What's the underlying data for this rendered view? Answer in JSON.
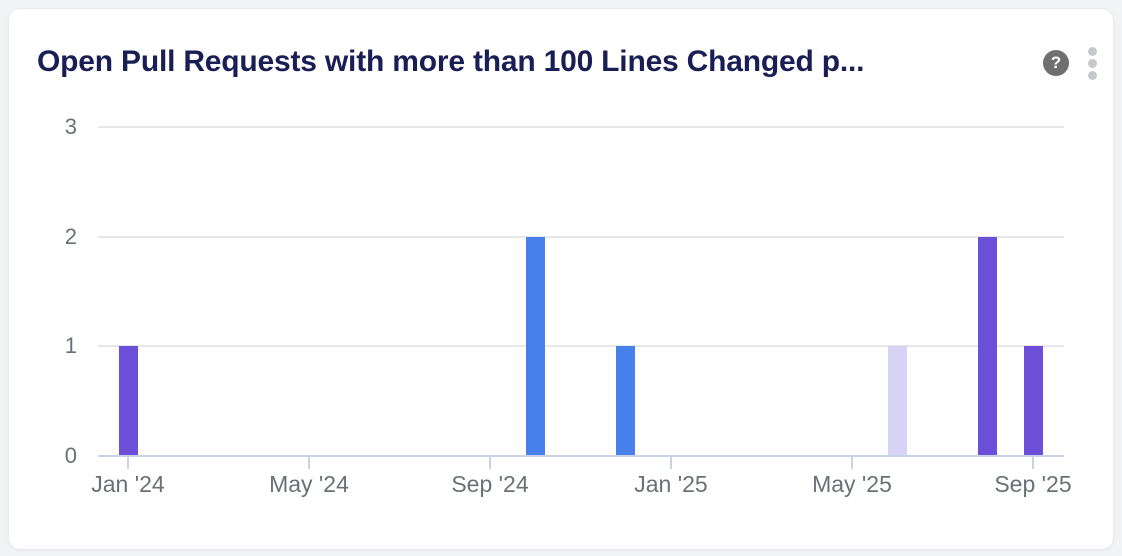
{
  "card": {
    "title": "Open Pull Requests with more than 100 Lines Changed p...",
    "help_icon": "?",
    "menu_icon": "kebab-vertical"
  },
  "colors": {
    "page_bg": "#F2F3F5",
    "card_bg": "#FFFFFF",
    "card_border": "#E8EAED",
    "title_text": "#191E55",
    "gridline": "#E7E7EA",
    "axis_line": "#C9D3E6",
    "tick_label": "#6B7076",
    "bar_purple": "#6B4FD8",
    "bar_blue": "#4880EB",
    "bar_lavender": "#D7D3F5",
    "help_icon_bg": "#6F6F6F",
    "kebab_dot": "#C8C9CC"
  },
  "chart_data": {
    "type": "bar",
    "title": "Open Pull Requests with more than 100 Lines Changed p...",
    "x_axis": {
      "unit": "month",
      "start": "Jan '24",
      "end": "Sep '25",
      "total_months": 21,
      "tick_labels": [
        "Jan '24",
        "May '24",
        "Sep '24",
        "Jan '25",
        "May '25",
        "Sep '25"
      ],
      "tick_month_indices": [
        0,
        4,
        8,
        12,
        16,
        20
      ]
    },
    "y_axis": {
      "ticks": [
        0,
        1,
        2,
        3
      ],
      "ylim": [
        0,
        3
      ]
    },
    "grid": true,
    "legend": "none",
    "bars": [
      {
        "month": "Jan '24",
        "month_index": 0,
        "value": 1,
        "color": "#6B4FD8"
      },
      {
        "month": "Oct '24",
        "month_index": 9,
        "value": 2,
        "color": "#4880EB"
      },
      {
        "month": "Dec '24",
        "month_index": 11,
        "value": 1,
        "color": "#4880EB"
      },
      {
        "month": "Jun '25",
        "month_index": 17,
        "value": 1,
        "color": "#D7D3F5"
      },
      {
        "month": "Aug '25",
        "month_index": 19,
        "value": 2,
        "color": "#6B4FD8"
      },
      {
        "month": "Sep '25",
        "month_index": 20,
        "value": 1,
        "color": "#6B4FD8"
      }
    ]
  }
}
